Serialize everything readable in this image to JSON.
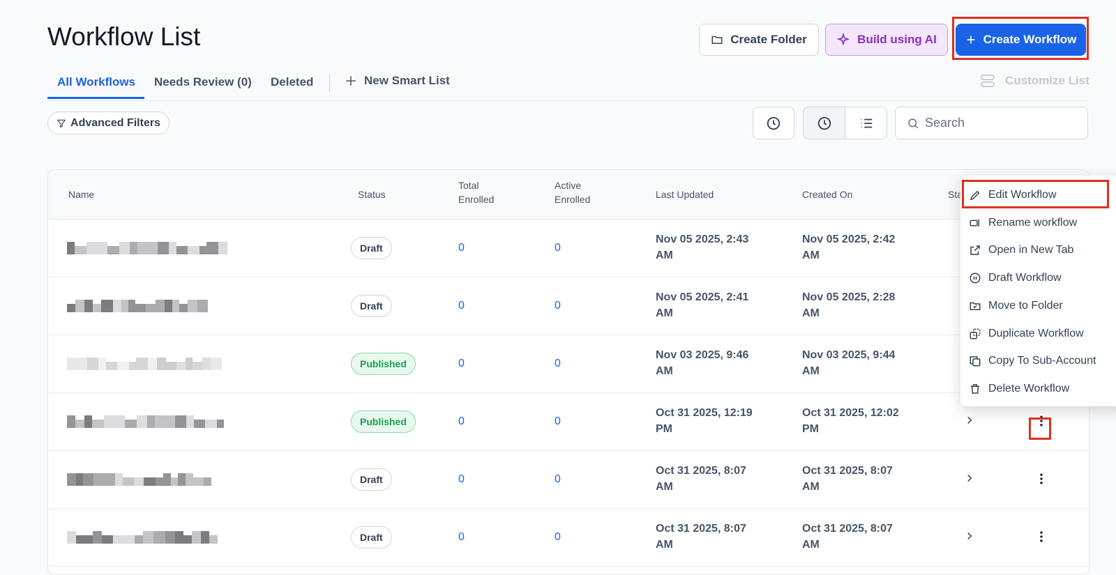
{
  "header": {
    "title": "Workflow List",
    "buttons": [
      "Create Folder",
      "Build using AI",
      "Create Workflow"
    ]
  },
  "tabs": {
    "items": [
      "All Workflows",
      "Needs Review (0)",
      "Deleted"
    ],
    "new_smart_list": "New Smart List",
    "customize": "Customize List"
  },
  "toolbar": {
    "filters": "Advanced Filters",
    "search_placeholder": "Search"
  },
  "table": {
    "columns": [
      "Name",
      "Status",
      "Total Enrolled",
      "Active Enrolled",
      "Last Updated",
      "Created On",
      "Stats"
    ],
    "rows": [
      {
        "status": "Draft",
        "total_enrolled": 0,
        "active_enrolled": 0,
        "last_updated": "Nov 05 2025, 2:43 AM",
        "created_on": "Nov 05 2025, 2:42 AM"
      },
      {
        "status": "Draft",
        "total_enrolled": 0,
        "active_enrolled": 0,
        "last_updated": "Nov 05 2025, 2:41 AM",
        "created_on": "Nov 05 2025, 2:28 AM"
      },
      {
        "status": "Published",
        "total_enrolled": 0,
        "active_enrolled": 0,
        "last_updated": "Nov 03 2025, 9:46 AM",
        "created_on": "Nov 03 2025, 9:44 AM"
      },
      {
        "status": "Published",
        "total_enrolled": 0,
        "active_enrolled": 0,
        "last_updated": "Oct 31 2025, 12:19 PM",
        "created_on": "Oct 31 2025, 12:02 PM"
      },
      {
        "status": "Draft",
        "total_enrolled": 0,
        "active_enrolled": 0,
        "last_updated": "Oct 31 2025, 8:07 AM",
        "created_on": "Oct 31 2025, 8:07 AM"
      },
      {
        "status": "Draft",
        "total_enrolled": 0,
        "active_enrolled": 0,
        "last_updated": "Oct 31 2025, 8:07 AM",
        "created_on": "Oct 31 2025, 8:07 AM"
      }
    ]
  },
  "context_menu": {
    "items": [
      "Edit Workflow",
      "Rename workflow",
      "Open in New Tab",
      "Draft Workflow",
      "Move to Folder",
      "Duplicate Workflow",
      "Copy To Sub-Account",
      "Delete Workflow"
    ]
  }
}
